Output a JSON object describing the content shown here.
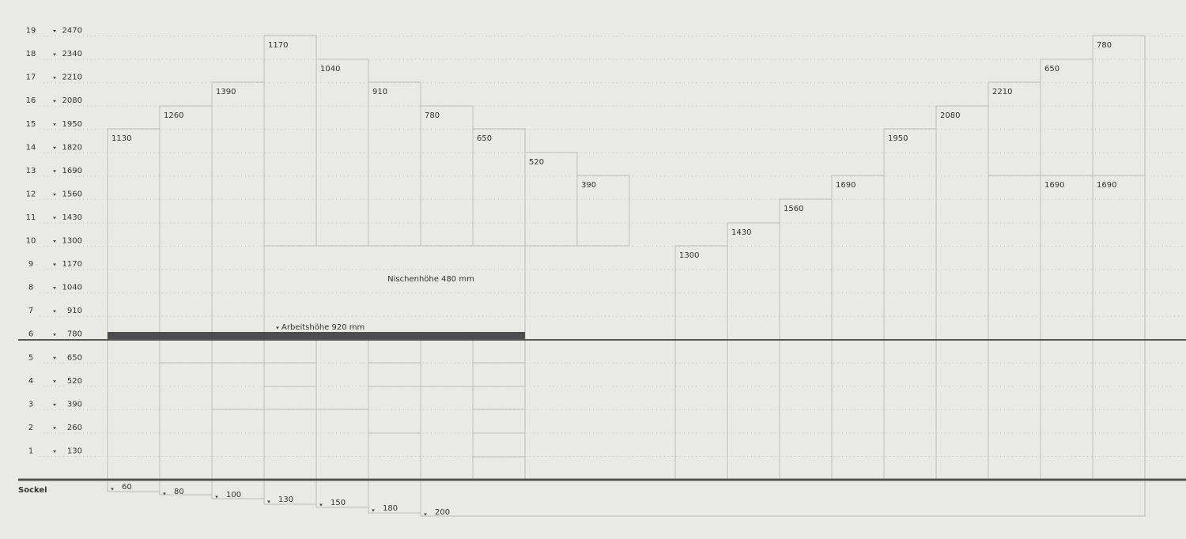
{
  "rows": [
    {
      "n": 1,
      "mm": 130
    },
    {
      "n": 2,
      "mm": 260
    },
    {
      "n": 3,
      "mm": 390
    },
    {
      "n": 4,
      "mm": 520
    },
    {
      "n": 5,
      "mm": 650
    },
    {
      "n": 6,
      "mm": 780
    },
    {
      "n": 7,
      "mm": 910
    },
    {
      "n": 8,
      "mm": 1040
    },
    {
      "n": 9,
      "mm": 1170
    },
    {
      "n": 10,
      "mm": 1300
    },
    {
      "n": 11,
      "mm": 1430
    },
    {
      "n": 12,
      "mm": 1560
    },
    {
      "n": 13,
      "mm": 1690
    },
    {
      "n": 14,
      "mm": 1820
    },
    {
      "n": 15,
      "mm": 1950
    },
    {
      "n": 16,
      "mm": 2080
    },
    {
      "n": 17,
      "mm": 2210
    },
    {
      "n": 18,
      "mm": 2340
    },
    {
      "n": 19,
      "mm": 2470
    }
  ],
  "sockel_label": "Sockel",
  "sockel": [
    60,
    80,
    100,
    130,
    150,
    180,
    200
  ],
  "upper": [
    1130,
    1260,
    1390,
    1170,
    1040,
    910,
    780,
    650,
    520,
    390
  ],
  "tall": [
    1300,
    1430,
    1560,
    1690,
    1950,
    2080,
    2210,
    650,
    780
  ],
  "tall_lower": [
    1690,
    1690
  ],
  "niche": "Nischenhöhe 480 mm",
  "worktop": "Arbeitshöhe 920 mm"
}
